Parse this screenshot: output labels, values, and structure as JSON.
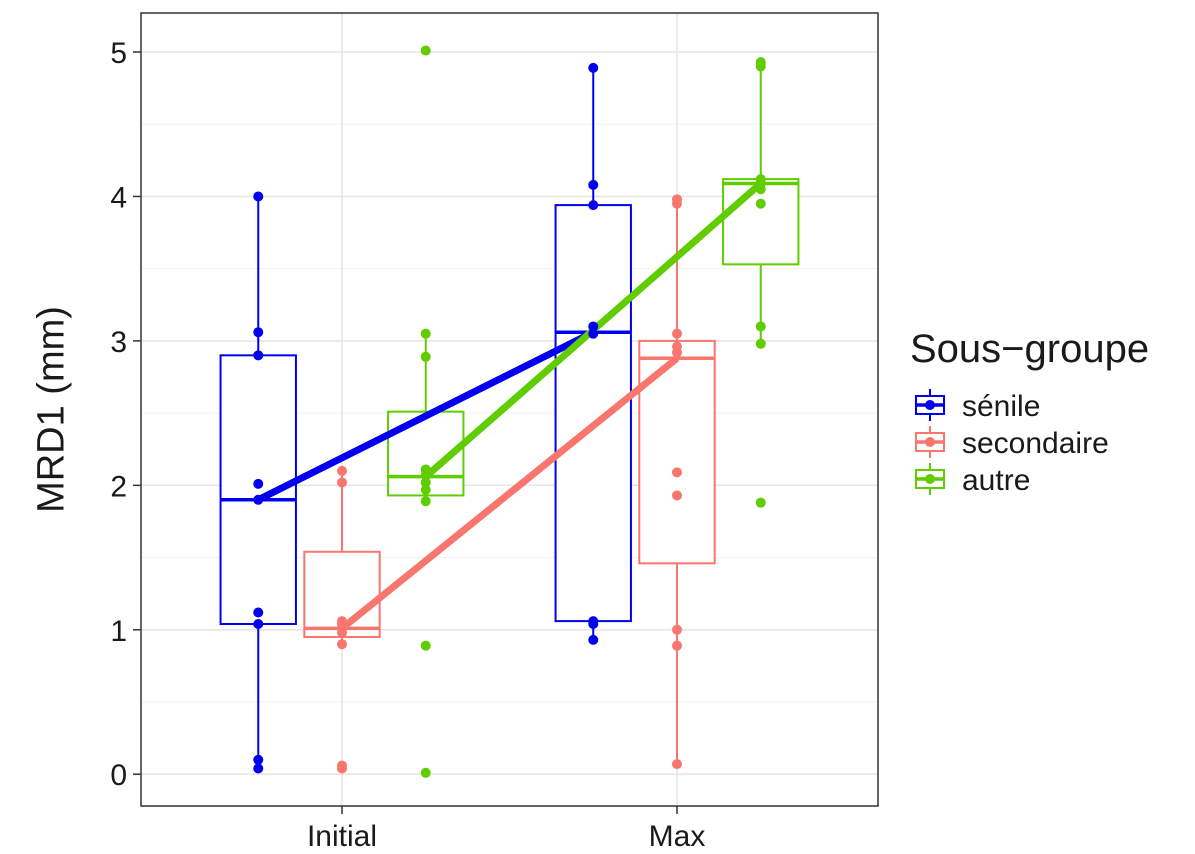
{
  "chart_data": {
    "type": "box",
    "title": "",
    "xlabel": "",
    "ylabel": "MRD1 (mm)",
    "ylim": [
      -0.22,
      5.27
    ],
    "yticks": [
      0,
      1,
      2,
      3,
      4,
      5
    ],
    "categories": [
      "Initial",
      "Max"
    ],
    "grid": true,
    "legend": {
      "title": "Sous−groupe",
      "position": "right"
    },
    "series": [
      {
        "name": "sénile",
        "color": "#0000ee",
        "boxes": [
          {
            "category": "Initial",
            "whisker_low": 0.04,
            "q1": 1.04,
            "median": 1.9,
            "q3": 2.9,
            "whisker_high": 4.0
          },
          {
            "category": "Max",
            "whisker_low": 0.93,
            "q1": 1.06,
            "median": 3.06,
            "q3": 3.94,
            "whisker_high": 4.89
          }
        ],
        "points": [
          {
            "category": "Initial",
            "values": [
              0.04,
              0.1,
              1.04,
              1.12,
              1.9,
              2.01,
              2.9,
              3.06,
              4.0
            ]
          },
          {
            "category": "Max",
            "values": [
              0.93,
              1.04,
              1.06,
              3.05,
              3.1,
              3.94,
              4.08,
              4.89
            ]
          }
        ],
        "mean_line": [
          1.9,
          3.06
        ]
      },
      {
        "name": "secondaire",
        "color": "#f8766d",
        "boxes": [
          {
            "category": "Initial",
            "whisker_low": 0.9,
            "q1": 0.95,
            "median": 1.01,
            "q3": 1.54,
            "whisker_high": 2.1
          },
          {
            "category": "Max",
            "whisker_low": 0.07,
            "q1": 1.46,
            "median": 2.88,
            "q3": 3.0,
            "whisker_high": 3.98
          }
        ],
        "points": [
          {
            "category": "Initial",
            "values": [
              0.04,
              0.06,
              0.9,
              0.98,
              1.01,
              1.04,
              1.06,
              2.02,
              2.1
            ]
          },
          {
            "category": "Max",
            "values": [
              0.07,
              0.89,
              1.0,
              1.93,
              2.09,
              2.92,
              2.96,
              3.05,
              3.95,
              3.98
            ]
          }
        ],
        "mean_line": [
          1.01,
          2.88
        ]
      },
      {
        "name": "autre",
        "color": "#5fcd00",
        "boxes": [
          {
            "category": "Initial",
            "whisker_low": 1.89,
            "q1": 1.93,
            "median": 2.06,
            "q3": 2.51,
            "whisker_high": 3.05
          },
          {
            "category": "Max",
            "whisker_low": 2.98,
            "q1": 3.53,
            "median": 4.09,
            "q3": 4.12,
            "whisker_high": 4.93
          }
        ],
        "points": [
          {
            "category": "Initial",
            "values": [
              0.01,
              0.89,
              1.89,
              1.97,
              2.02,
              2.07,
              2.11,
              2.89,
              3.05,
              5.01
            ]
          },
          {
            "category": "Max",
            "values": [
              1.88,
              2.98,
              3.1,
              3.95,
              4.05,
              4.09,
              4.12,
              4.9,
              4.93
            ]
          }
        ],
        "mean_line": [
          2.06,
          4.09
        ]
      }
    ]
  }
}
